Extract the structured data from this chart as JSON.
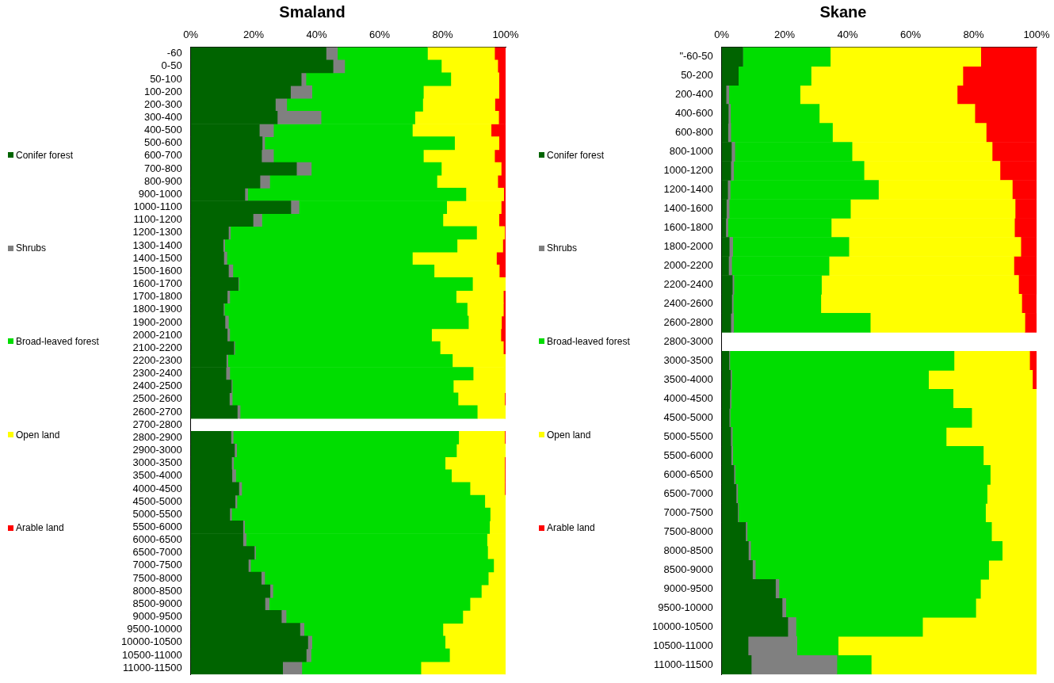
{
  "chart_data": [
    {
      "type": "bar",
      "title": "Smaland",
      "orientation": "horizontal",
      "stacked": true,
      "legend": "left",
      "grid": false,
      "categories": [
        "-60",
        "0-50",
        "50-100",
        "100-200",
        "200-300",
        "300-400",
        "400-500",
        "500-600",
        "600-700",
        "700-800",
        "800-900",
        "900-1000",
        "1000-1100",
        "1100-1200",
        "1200-1300",
        "1300-1400",
        "1400-1500",
        "1500-1600",
        "1600-1700",
        "1700-1800",
        "1800-1900",
        "1900-2000",
        "2000-2100",
        "2100-2200",
        "2200-2300",
        "2300-2400",
        "2400-2500",
        "2500-2600",
        "2600-2700",
        "2700-2800",
        "2800-2900",
        "2900-3000",
        "3000-3500",
        "3500-4000",
        "4000-4500",
        "4500-5000",
        "5000-5500",
        "5500-6000",
        "6000-6500",
        "6500-7000",
        "7000-7500",
        "7500-8000",
        "8000-8500",
        "8500-9000",
        "9000-9500",
        "9500-10000",
        "10000-10500",
        "10500-11000",
        "11000-11500"
      ],
      "xlim": [
        0,
        100
      ],
      "xticks": [
        {
          "value": 0,
          "label": "0%"
        },
        {
          "value": 20,
          "label": "20%"
        },
        {
          "value": 40,
          "label": "40%"
        },
        {
          "value": 60,
          "label": "60%"
        },
        {
          "value": 80,
          "label": "80%"
        },
        {
          "value": 100,
          "label": "100%"
        }
      ],
      "series": [
        {
          "name": "Conifer forest",
          "color": "#006400",
          "values": [
            43,
            45.2,
            35.1,
            31.7,
            26.9,
            27.5,
            21.8,
            22.7,
            22.5,
            33.6,
            22,
            17.2,
            31.8,
            19.8,
            12,
            10.3,
            10.5,
            12,
            15.1,
            11.6,
            10.4,
            10.9,
            11.6,
            13.7,
            11.3,
            11.2,
            12.9,
            12.3,
            14.8,
            null,
            12.8,
            13.9,
            13,
            13.1,
            15.3,
            14.1,
            12.4,
            16.6,
            16.6,
            20.2,
            18.3,
            22.4,
            25.2,
            23.6,
            28.8,
            34.7,
            37.2,
            36.7,
            29.2
          ]
        },
        {
          "name": "Shrubs",
          "color": "#808080",
          "values": [
            3.6,
            3.7,
            1.5,
            6.8,
            3.6,
            13.9,
            4.5,
            0.8,
            3.8,
            4.7,
            3.1,
            0.9,
            2.6,
            2.8,
            0.6,
            0.5,
            1,
            1.4,
            0.2,
            0.8,
            0.3,
            1.1,
            0.8,
            0.3,
            0.5,
            1.2,
            0.3,
            0.9,
            0.9,
            null,
            0.7,
            0.7,
            0.6,
            1.2,
            0.9,
            0.6,
            0.6,
            0.5,
            1,
            0.4,
            0.7,
            1.1,
            0.9,
            1.3,
            1.5,
            1.3,
            1.3,
            1.5,
            6.1
          ]
        },
        {
          "name": "Broad-leaved forest",
          "color": "#00dd00",
          "values": [
            28.6,
            30.7,
            46,
            35.4,
            43.2,
            29.8,
            44.1,
            60.3,
            47.6,
            41.3,
            53.1,
            69.3,
            46.9,
            57.5,
            78.2,
            73.8,
            58.9,
            63.9,
            74.2,
            71.9,
            77.1,
            76.2,
            64.1,
            65.2,
            71.3,
            77.3,
            70.2,
            71.7,
            75.3,
            null,
            71.6,
            69.8,
            67.2,
            68.5,
            72.5,
            78.7,
            82.1,
            77.8,
            76.5,
            73.7,
            77.2,
            71,
            66.2,
            63.8,
            56.1,
            44.1,
            42.3,
            44,
            37.8
          ]
        },
        {
          "name": "Open land",
          "color": "#ffff00",
          "values": [
            21.3,
            17.9,
            15.3,
            24,
            22.9,
            26.6,
            25,
            14.1,
            22.6,
            19,
            19.3,
            12,
            17.3,
            17.8,
            8.9,
            14.5,
            26.7,
            20.7,
            10.5,
            15,
            11.5,
            10.5,
            22,
            20.1,
            16.9,
            10.3,
            16.6,
            14.8,
            9,
            null,
            14.6,
            15.6,
            18.9,
            16.9,
            11,
            6.6,
            4.9,
            5.1,
            5.9,
            5.7,
            3.8,
            5.5,
            7.7,
            11.3,
            13.6,
            19.9,
            19.2,
            17.8,
            26.9
          ]
        },
        {
          "name": "Arable land",
          "color": "#ff0000",
          "values": [
            3.5,
            2.5,
            2.1,
            2.1,
            3.4,
            2.2,
            4.6,
            2.1,
            3.5,
            1.4,
            2.5,
            0.6,
            1.4,
            2.1,
            0.3,
            0.9,
            2.9,
            2,
            0,
            0.7,
            0.7,
            1.3,
            1.5,
            0.7,
            0,
            0,
            0,
            0.3,
            0,
            null,
            0.3,
            0,
            0.3,
            0.3,
            0.3,
            0,
            0,
            0,
            0,
            0,
            0,
            0,
            0,
            0,
            0,
            0,
            0,
            0,
            0
          ]
        }
      ]
    },
    {
      "type": "bar",
      "title": "Skane",
      "orientation": "horizontal",
      "stacked": true,
      "legend": "left",
      "grid": false,
      "categories": [
        "\"-60-50",
        "50-200",
        "200-400",
        "400-600",
        "600-800",
        "800-1000",
        "1000-1200",
        "1200-1400",
        "1400-1600",
        "1600-1800",
        "1800-2000",
        "2000-2200",
        "2200-2400",
        "2400-2600",
        "2600-2800",
        "2800-3000",
        "3000-3500",
        "3500-4000",
        "4000-4500",
        "4500-5000",
        "5000-5500",
        "5500-6000",
        "6000-6500",
        "6500-7000",
        "7000-7500",
        "7500-8000",
        "8000-8500",
        "8500-9000",
        "9000-9500",
        "9500-10000",
        "10000-10500",
        "10500-11000",
        "11000-11500"
      ],
      "xlim": [
        0,
        100
      ],
      "xticks": [
        {
          "value": 0,
          "label": "0%"
        },
        {
          "value": 20,
          "label": "20%"
        },
        {
          "value": 40,
          "label": "40%"
        },
        {
          "value": 60,
          "label": "60%"
        },
        {
          "value": 80,
          "label": "80%"
        },
        {
          "value": 100,
          "label": "100%"
        }
      ],
      "series": [
        {
          "name": "Conifer forest",
          "color": "#006400",
          "values": [
            6.7,
            5.3,
            1.4,
            2.1,
            2,
            3.1,
            2.9,
            1.9,
            1.5,
            1.3,
            2.4,
            2.2,
            3.4,
            3.2,
            2.9,
            null,
            2.3,
            2.8,
            2.6,
            2.4,
            2.9,
            3,
            3.9,
            4.6,
            5.1,
            7.6,
            8.5,
            9.8,
            17.1,
            19.2,
            21,
            8.4,
            9.4
          ]
        },
        {
          "name": "Shrubs",
          "color": "#808080",
          "values": [
            0,
            0,
            0.9,
            0.7,
            0.9,
            1.1,
            0.9,
            0.8,
            0.9,
            0.7,
            1.1,
            1,
            0.5,
            0.5,
            0.9,
            null,
            0.3,
            0.4,
            0.4,
            0.3,
            0.5,
            0.5,
            0.4,
            0.5,
            0.3,
            0.5,
            0.7,
            0.9,
            1.1,
            1.2,
            2.6,
            15.5,
            27.2
          ]
        },
        {
          "name": "Broad-leaved forest",
          "color": "#00dd00",
          "values": [
            27.8,
            23.1,
            22.6,
            28.2,
            32.3,
            37.2,
            41.4,
            47.1,
            38.5,
            32.8,
            36.9,
            30.9,
            27.8,
            27.8,
            43.4,
            null,
            71.2,
            62.5,
            70.5,
            76.7,
            67.9,
            79.6,
            81,
            79.2,
            78.4,
            77.6,
            79.9,
            74.1,
            64,
            60.3,
            40.2,
            13.1,
            10.9
          ]
        },
        {
          "name": "Open land",
          "color": "#ffff00",
          "values": [
            47.8,
            48.2,
            49.9,
            49.4,
            48.8,
            44.5,
            43.2,
            42.5,
            52.3,
            58.2,
            54.6,
            58.7,
            62.6,
            63.8,
            49.1,
            null,
            24,
            33,
            26.5,
            20.6,
            28.7,
            16.9,
            14.7,
            15.7,
            16.2,
            14.3,
            10.9,
            15.2,
            17.8,
            19.3,
            36.2,
            63,
            52.5
          ]
        },
        {
          "name": "Arable land",
          "color": "#ff0000",
          "values": [
            17.7,
            23.4,
            25.2,
            19.6,
            16,
            14.1,
            11.6,
            7.7,
            6.8,
            7,
            5,
            7.2,
            5.7,
            4.6,
            3.7,
            null,
            2.2,
            1.3,
            0,
            0,
            0,
            0,
            0,
            0,
            0,
            0,
            0,
            0,
            0,
            0,
            0,
            0,
            0
          ]
        }
      ]
    }
  ]
}
